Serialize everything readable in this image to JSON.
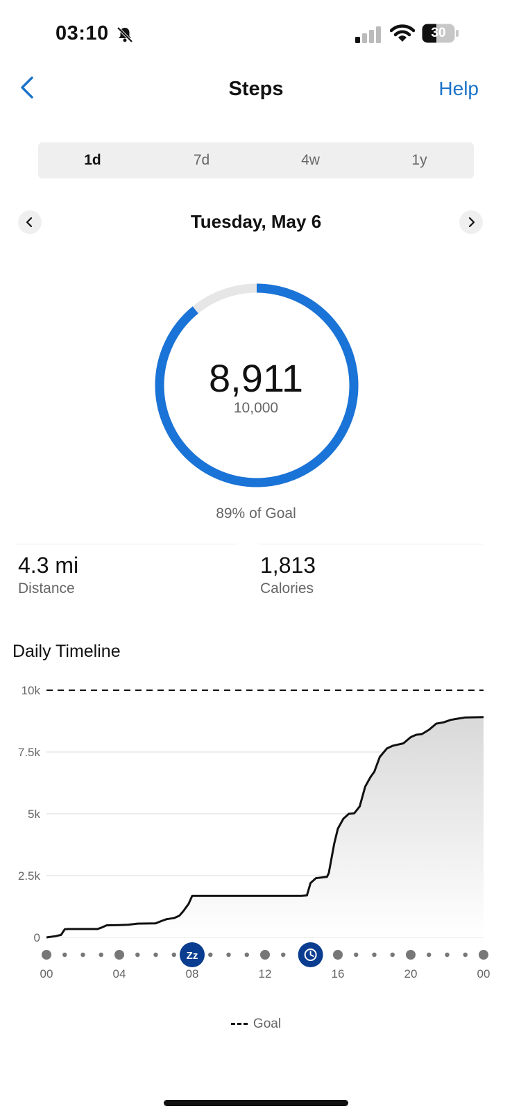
{
  "status_bar": {
    "time": "03:10",
    "battery": "30"
  },
  "header": {
    "title": "Steps",
    "help_label": "Help"
  },
  "tabs": [
    {
      "label": "1d",
      "active": true
    },
    {
      "label": "7d",
      "active": false
    },
    {
      "label": "4w",
      "active": false
    },
    {
      "label": "1y",
      "active": false
    }
  ],
  "date_nav": {
    "date": "Tuesday, May 6"
  },
  "summary": {
    "steps": "8,911",
    "goal": "10,000",
    "progress": 0.8911,
    "goal_percent_text": "89% of Goal"
  },
  "stats": {
    "distance": {
      "value": "4.3 mi",
      "label": "Distance"
    },
    "calories": {
      "value": "1,813",
      "label": "Calories"
    }
  },
  "timeline": {
    "title": "Daily Timeline",
    "legend_label": "Goal",
    "colors": {
      "ring": "#1a73d6",
      "ring_track": "#e6e6e6",
      "marker": "#0a3d8f",
      "accent": "#1a73c9"
    },
    "chart_data": {
      "type": "area",
      "title": "",
      "xlabel": "",
      "ylabel": "",
      "x_ticks": [
        "00",
        "04",
        "08",
        "12",
        "16",
        "20",
        "00"
      ],
      "y_ticks": [
        "0",
        "2.5k",
        "5k",
        "7.5k",
        "10k"
      ],
      "ylim": [
        0,
        10000
      ],
      "goal": 10000,
      "markers": [
        {
          "hour": 8,
          "icon": "sleep-icon",
          "glyph": "Zz"
        },
        {
          "hour": 14.5,
          "icon": "clock-icon"
        }
      ],
      "series": [
        {
          "x": [
            0,
            0.5,
            0.8,
            1,
            1.2,
            2,
            2.8,
            3,
            3.3,
            4,
            4.5,
            5,
            6,
            6.3,
            6.6,
            7,
            7.3,
            7.5,
            7.8,
            8,
            10,
            12,
            14,
            14.3,
            14.5,
            14.8,
            15.1,
            15.4,
            15.5,
            15.8,
            16,
            16.3,
            16.6,
            16.9,
            17.2,
            17.5,
            17.8,
            18,
            18.3,
            18.7,
            19,
            19.3,
            19.6,
            20,
            20.3,
            20.6,
            21,
            21.4,
            21.8,
            22.2,
            22.6,
            23,
            24
          ],
          "y": [
            0,
            50,
            100,
            330,
            340,
            340,
            340,
            390,
            490,
            500,
            510,
            560,
            570,
            660,
            740,
            780,
            880,
            1050,
            1350,
            1680,
            1680,
            1680,
            1680,
            1700,
            2200,
            2400,
            2420,
            2450,
            2600,
            3800,
            4400,
            4800,
            5000,
            5020,
            5300,
            6100,
            6500,
            6700,
            7300,
            7650,
            7750,
            7800,
            7850,
            8100,
            8200,
            8220,
            8400,
            8650,
            8700,
            8800,
            8850,
            8900,
            8911
          ]
        }
      ]
    }
  }
}
